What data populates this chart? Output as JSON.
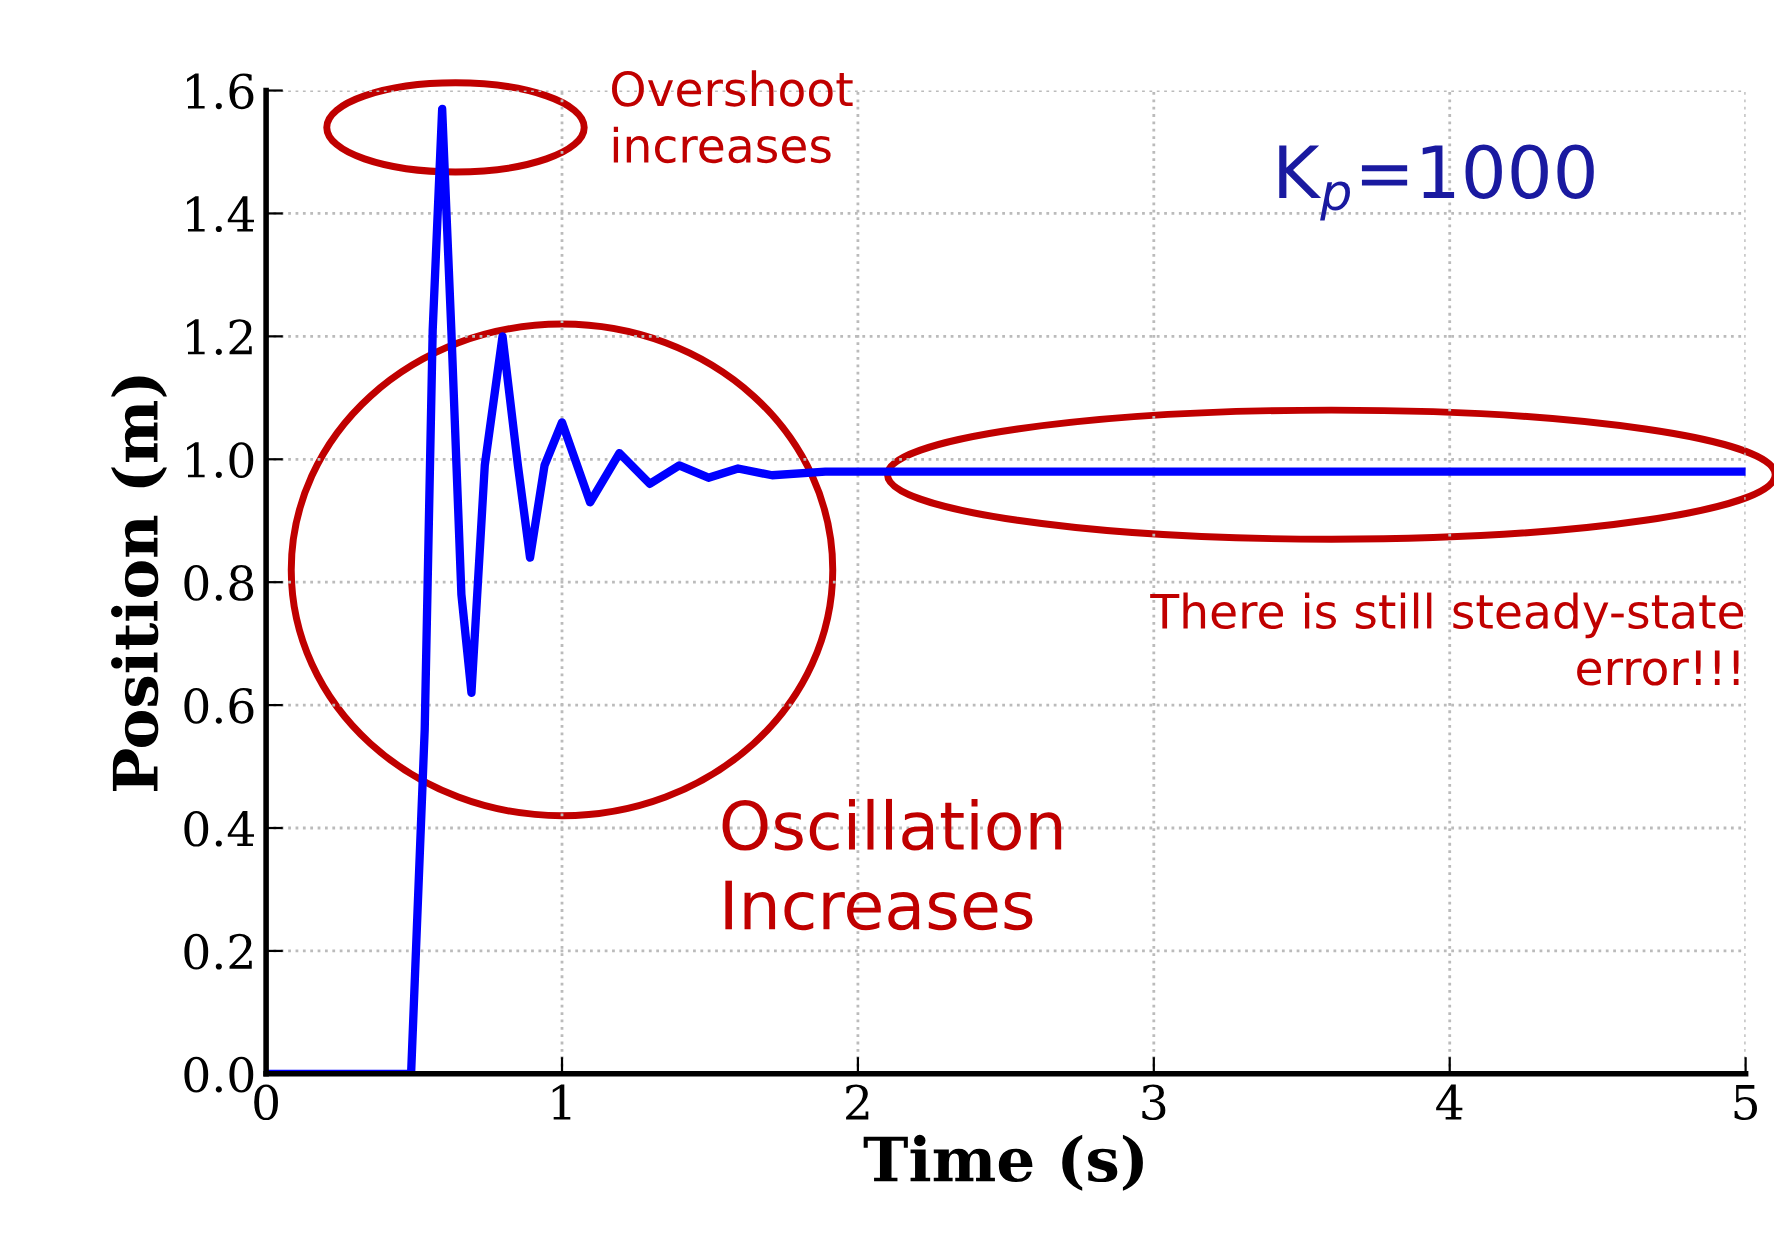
{
  "chart_data": {
    "type": "line",
    "xlabel": "Time (s)",
    "ylabel": "Position (m)",
    "xlim": [
      0,
      5
    ],
    "ylim": [
      0,
      1.6
    ],
    "xticks": [
      0,
      1,
      2,
      3,
      4,
      5
    ],
    "yticks": [
      {
        "value": 0,
        "label": "0.0"
      },
      {
        "value": 0.2,
        "label": "0.2"
      },
      {
        "value": 0.4,
        "label": "0.4"
      },
      {
        "value": 0.6,
        "label": "0.6"
      },
      {
        "value": 0.8,
        "label": "0.8"
      },
      {
        "value": 1.0,
        "label": "1.0"
      },
      {
        "value": 1.2,
        "label": "1.2"
      },
      {
        "value": 1.4,
        "label": "1.4"
      },
      {
        "value": 1.6,
        "label": "1.6"
      }
    ],
    "grid": true,
    "line_style": "solid",
    "marker": "none",
    "series": [
      {
        "color": "#0000ff",
        "x": [
          0,
          0.49,
          0.536,
          0.563,
          0.595,
          0.626,
          0.66,
          0.694,
          0.739,
          0.799,
          0.851,
          0.892,
          0.941,
          1.0,
          1.095,
          1.194,
          1.297,
          1.396,
          1.495,
          1.595,
          1.71,
          1.89,
          5
        ],
        "values": [
          0,
          0,
          0.56,
          1.21,
          1.57,
          1.21,
          0.78,
          0.62,
          0.99,
          1.2,
          0.99,
          0.84,
          0.99,
          1.06,
          0.93,
          1.01,
          0.96,
          0.99,
          0.97,
          0.985,
          0.974,
          0.98,
          0.98
        ]
      }
    ],
    "annotations": [
      "Overshoot\nincreases",
      "K$_{p}$=1000",
      "Oscillation\nIncreases",
      "There is still steady-state\nerror!!!"
    ]
  }
}
